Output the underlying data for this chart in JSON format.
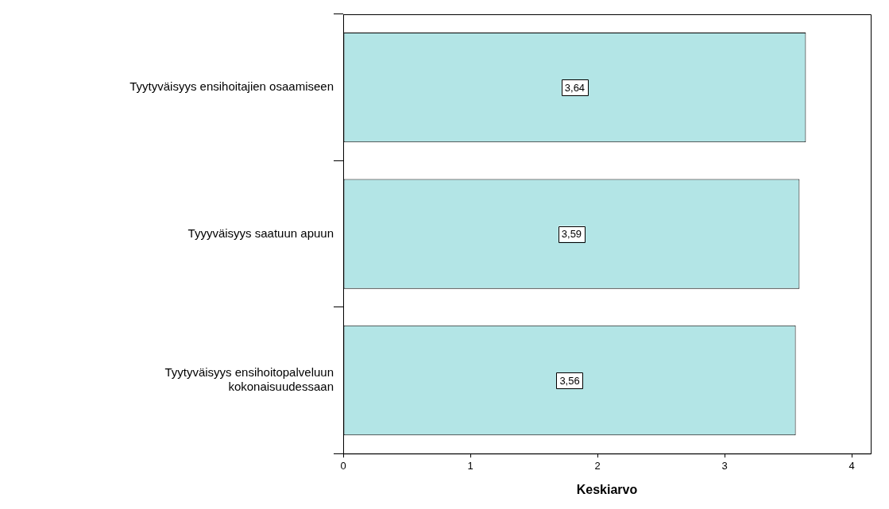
{
  "chart_data": {
    "type": "bar",
    "orientation": "horizontal",
    "xlabel": "Keskiarvo",
    "categories": [
      "Tyytyväisyys ensihoitajien osaamiseen",
      "Tyyyväisyys saatuun apuun",
      "Tyytyväisyys ensihoitopalveluun kokonaisuudessaan"
    ],
    "values": [
      3.64,
      3.59,
      3.56
    ],
    "value_labels": [
      "3,64",
      "3,59",
      "3,56"
    ],
    "color": "#b3e5e6",
    "xlim": [
      0,
      4.15
    ],
    "xticks": [
      0,
      1,
      2,
      3,
      4
    ],
    "grid": false,
    "legend": false
  }
}
